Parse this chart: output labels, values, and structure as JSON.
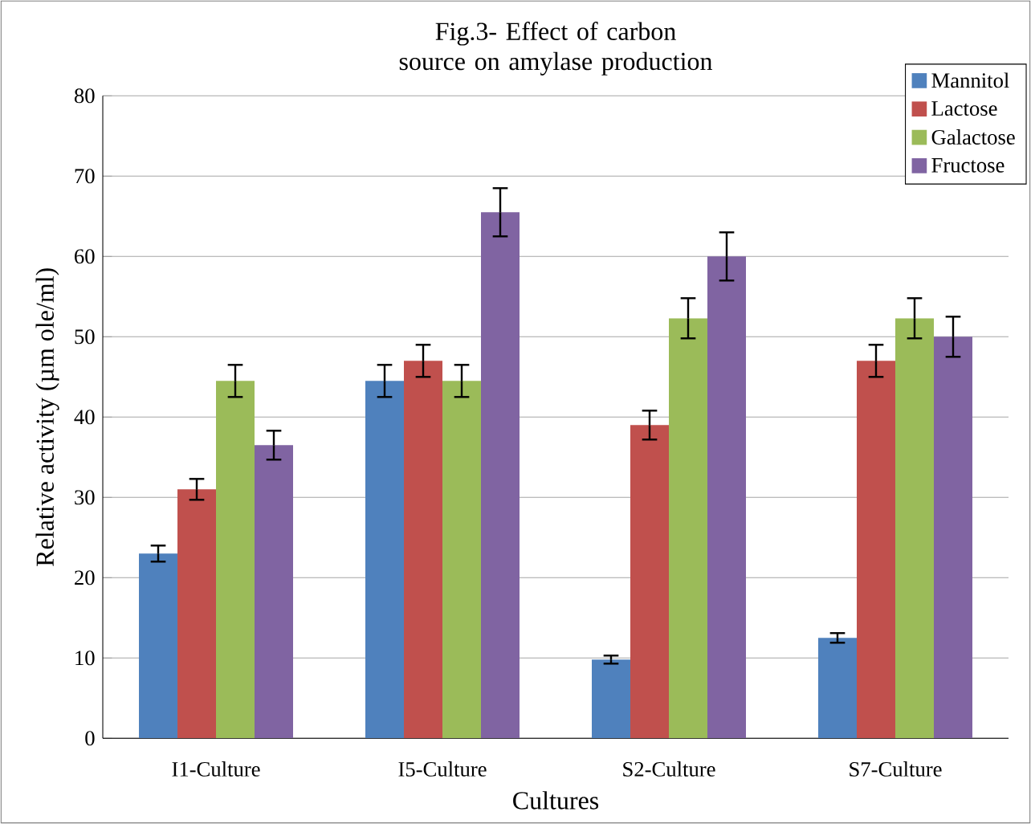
{
  "chart_data": {
    "type": "bar",
    "title": "Fig.3- Effect of carbon source on amylase production",
    "xlabel": "Cultures",
    "ylabel": "Relative activity (µm ole/ml)",
    "categories": [
      "I1-Culture",
      "I5-Culture",
      "S2-Culture",
      "S7-Culture"
    ],
    "series": [
      {
        "name": "Mannitol",
        "color": "#4f81bd",
        "values": [
          23,
          44.5,
          9.8,
          12.5
        ],
        "errors": [
          1,
          2,
          0.5,
          0.6
        ]
      },
      {
        "name": "Lactose",
        "color": "#c0504d",
        "values": [
          31,
          47,
          39,
          47
        ],
        "errors": [
          1.3,
          2,
          1.8,
          2
        ]
      },
      {
        "name": "Galactose",
        "color": "#9bbb59",
        "values": [
          44.5,
          44.5,
          52.3,
          52.3
        ],
        "errors": [
          2,
          2,
          2.5,
          2.5
        ]
      },
      {
        "name": "Fructose",
        "color": "#8064a2",
        "values": [
          36.5,
          65.5,
          60,
          50
        ],
        "errors": [
          1.8,
          3,
          3,
          2.5
        ]
      }
    ],
    "ylim": [
      0,
      80
    ],
    "yticks": [
      0,
      10,
      20,
      30,
      40,
      50,
      60,
      70,
      80
    ],
    "grid": "y",
    "legend": "top right"
  }
}
